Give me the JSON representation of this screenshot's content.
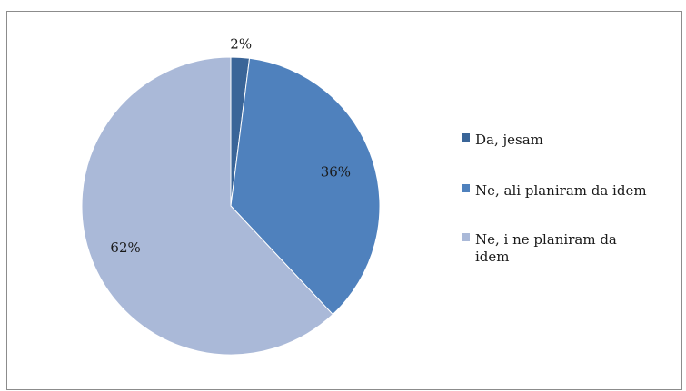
{
  "chart_data": {
    "type": "pie",
    "title": "",
    "categories": [
      "Da, jesam",
      "Ne, ali planiram da idem",
      "Ne, i ne planiram da idem"
    ],
    "values": [
      2,
      36,
      62
    ],
    "data_labels": [
      "2%",
      "36%",
      "62%"
    ],
    "colors": [
      "#3a6598",
      "#4f81bd",
      "#aab9d8"
    ],
    "legend_position": "right",
    "legend_lines": [
      [
        "Da, jesam"
      ],
      [
        "Ne, ali planiram da idem"
      ],
      [
        "Ne, i ne planiram da",
        "idem"
      ]
    ]
  }
}
